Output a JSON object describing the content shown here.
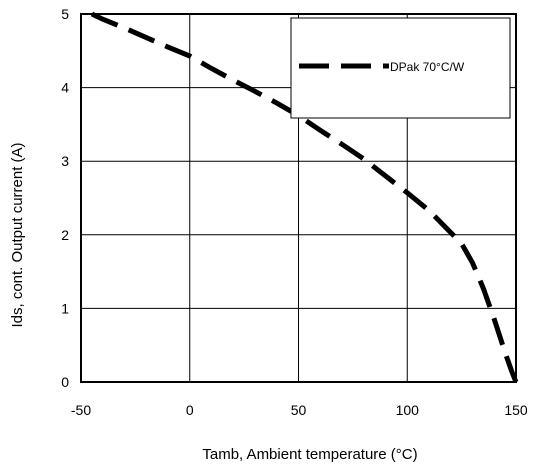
{
  "chart_data": {
    "type": "line",
    "title": "",
    "xlabel": "Tamb, Ambient temperature (°C)",
    "ylabel": "Ids, cont. Output current (A)",
    "xlim": [
      -50,
      150
    ],
    "ylim": [
      0,
      5
    ],
    "x_ticks": [
      "-50",
      "0",
      "50",
      "100",
      "150"
    ],
    "y_ticks": [
      "0",
      "1",
      "2",
      "3",
      "4",
      "5"
    ],
    "grid": true,
    "legend_position": "top-right",
    "series": [
      {
        "name": "DPak 70°C/W",
        "color": "#000000",
        "line_style": "dashed",
        "x": [
          -45,
          -40,
          -30,
          -20,
          -10,
          0,
          10,
          20,
          30,
          40,
          50,
          60,
          70,
          80,
          90,
          100,
          110,
          120,
          125,
          130,
          135,
          140,
          145,
          148,
          150
        ],
        "y": [
          5.0,
          4.93,
          4.81,
          4.68,
          4.55,
          4.43,
          4.26,
          4.1,
          3.95,
          3.79,
          3.62,
          3.42,
          3.23,
          3.03,
          2.8,
          2.57,
          2.33,
          2.03,
          1.88,
          1.62,
          1.27,
          0.85,
          0.4,
          0.15,
          0.0
        ]
      }
    ]
  }
}
